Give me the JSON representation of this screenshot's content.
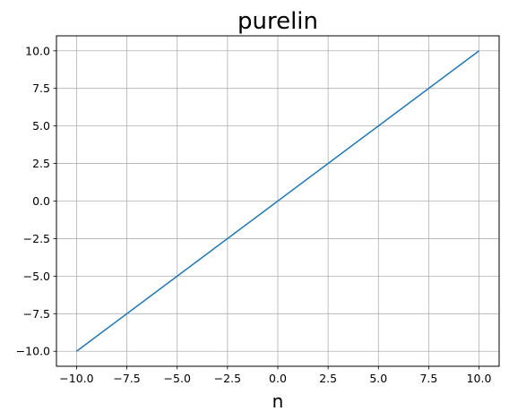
{
  "chart_data": {
    "type": "line",
    "title": "purelin",
    "xlabel": "n",
    "ylabel": "",
    "xlim": [
      -11,
      11
    ],
    "ylim": [
      -11,
      11
    ],
    "grid": true,
    "x_ticks": [
      -10.0,
      -7.5,
      -5.0,
      -2.5,
      0.0,
      2.5,
      5.0,
      7.5,
      10.0
    ],
    "y_ticks": [
      -10.0,
      -7.5,
      -5.0,
      -2.5,
      0.0,
      2.5,
      5.0,
      7.5,
      10.0
    ],
    "x_tick_labels": [
      "−10.0",
      "−7.5",
      "−5.0",
      "−2.5",
      "0.0",
      "2.5",
      "5.0",
      "7.5",
      "10.0"
    ],
    "y_tick_labels": [
      "−10.0",
      "−7.5",
      "−5.0",
      "−2.5",
      "0.0",
      "2.5",
      "5.0",
      "7.5",
      "10.0"
    ],
    "series": [
      {
        "color": "#1f77b4",
        "x": [
          -10,
          10
        ],
        "y": [
          -10,
          10
        ]
      }
    ]
  }
}
